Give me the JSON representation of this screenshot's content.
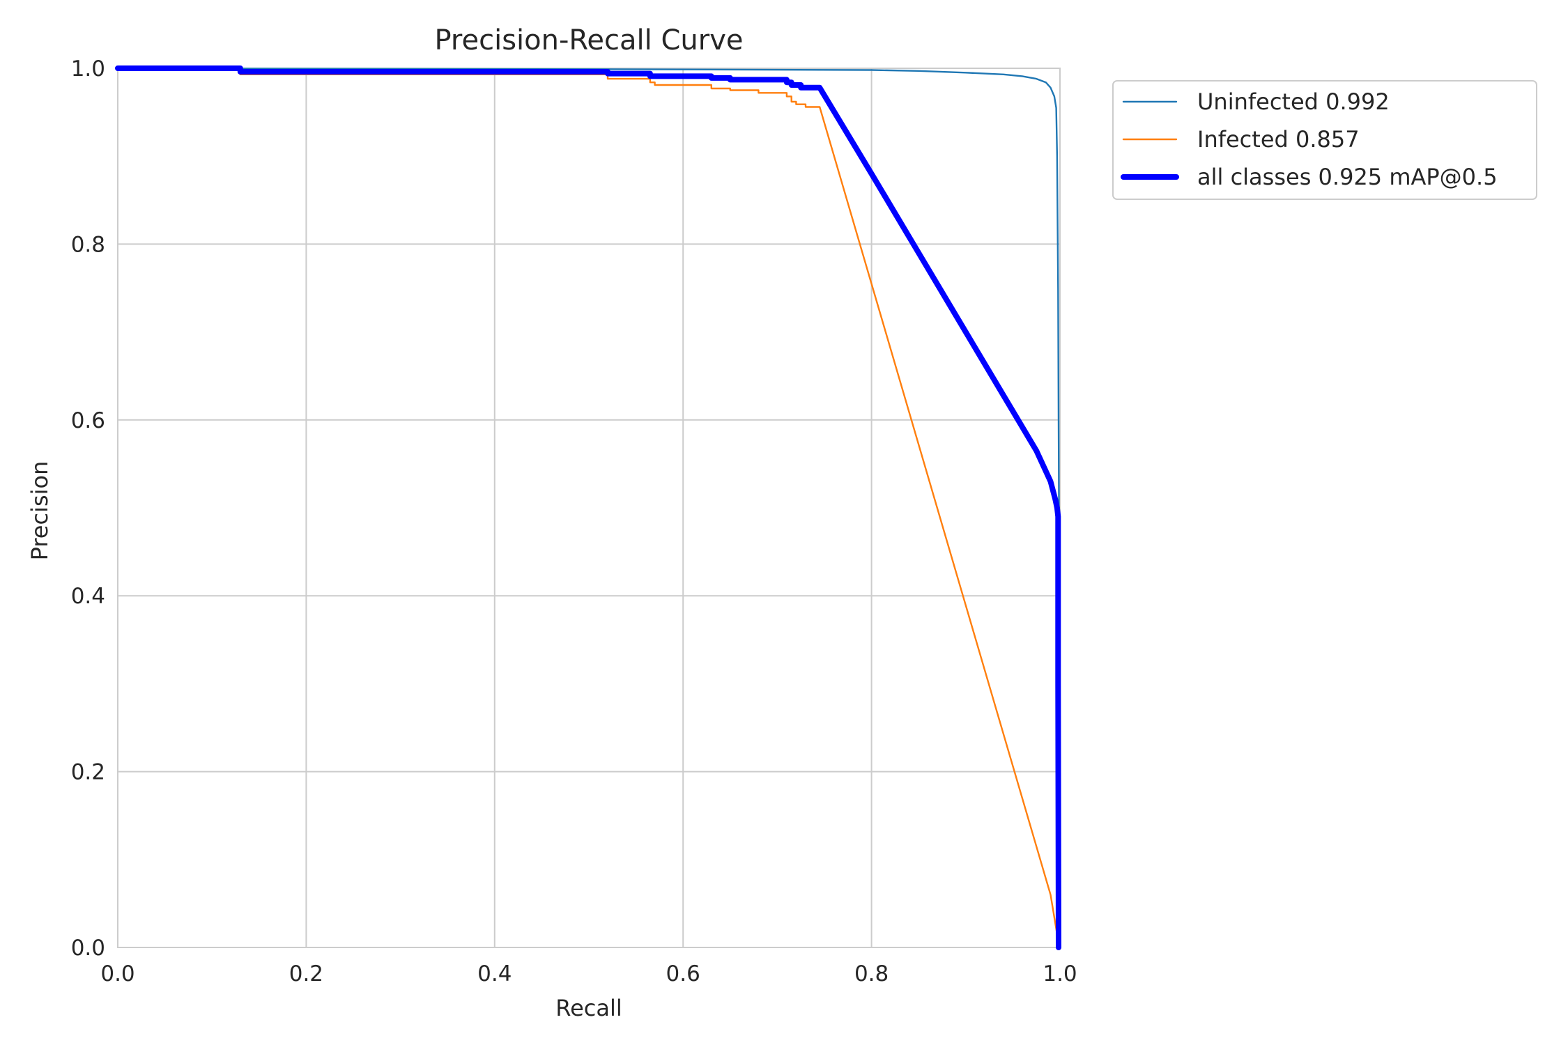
{
  "chart_data": {
    "type": "line",
    "title": "Precision-Recall Curve",
    "xlabel": "Recall",
    "ylabel": "Precision",
    "xlim": [
      0.0,
      1.0
    ],
    "ylim": [
      0.0,
      1.0
    ],
    "x_ticks": [
      "0.0",
      "0.2",
      "0.4",
      "0.6",
      "0.8",
      "1.0"
    ],
    "y_ticks": [
      "0.0",
      "0.2",
      "0.4",
      "0.6",
      "0.8",
      "1.0"
    ],
    "grid": true,
    "legend_position": "outside upper right",
    "series": [
      {
        "name": "Uninfected 0.992",
        "color": "#1f77b4",
        "line_width": "thin",
        "x": [
          0.0,
          0.5,
          0.8,
          0.85,
          0.9,
          0.94,
          0.96,
          0.975,
          0.985,
          0.99,
          0.994,
          0.996,
          0.997,
          0.998,
          0.9985,
          0.999,
          0.9995
        ],
        "y": [
          1.0,
          0.999,
          0.998,
          0.997,
          0.995,
          0.993,
          0.991,
          0.988,
          0.984,
          0.978,
          0.968,
          0.955,
          0.9,
          0.75,
          0.6,
          0.49,
          0.43
        ]
      },
      {
        "name": "Infected 0.857",
        "color": "#ff7f0e",
        "line_width": "thin",
        "x": [
          0.0,
          0.13,
          0.13,
          0.52,
          0.52,
          0.565,
          0.565,
          0.57,
          0.57,
          0.63,
          0.63,
          0.65,
          0.65,
          0.68,
          0.68,
          0.71,
          0.71,
          0.715,
          0.715,
          0.72,
          0.72,
          0.73,
          0.73,
          0.745,
          0.99,
          0.9985
        ],
        "y": [
          1.0,
          1.0,
          0.993,
          0.993,
          0.988,
          0.988,
          0.984,
          0.984,
          0.981,
          0.981,
          0.977,
          0.977,
          0.975,
          0.975,
          0.972,
          0.972,
          0.968,
          0.968,
          0.962,
          0.962,
          0.959,
          0.959,
          0.956,
          0.956,
          0.06,
          0.005
        ]
      },
      {
        "name": "all classes 0.925 mAP@0.5",
        "color": "#0000ff",
        "line_width": "thick",
        "x": [
          0.0,
          0.13,
          0.13,
          0.52,
          0.52,
          0.565,
          0.565,
          0.63,
          0.63,
          0.65,
          0.65,
          0.71,
          0.71,
          0.715,
          0.715,
          0.725,
          0.725,
          0.745,
          0.8,
          0.85,
          0.9,
          0.95,
          0.975,
          0.99,
          0.995,
          0.997,
          0.998,
          0.998,
          0.9985
        ],
        "y": [
          1.0,
          1.0,
          0.996,
          0.996,
          0.994,
          0.994,
          0.991,
          0.991,
          0.989,
          0.989,
          0.987,
          0.987,
          0.984,
          0.984,
          0.981,
          0.981,
          0.978,
          0.978,
          0.88,
          0.79,
          0.7,
          0.61,
          0.565,
          0.53,
          0.51,
          0.5,
          0.49,
          0.3,
          0.0
        ]
      }
    ]
  }
}
